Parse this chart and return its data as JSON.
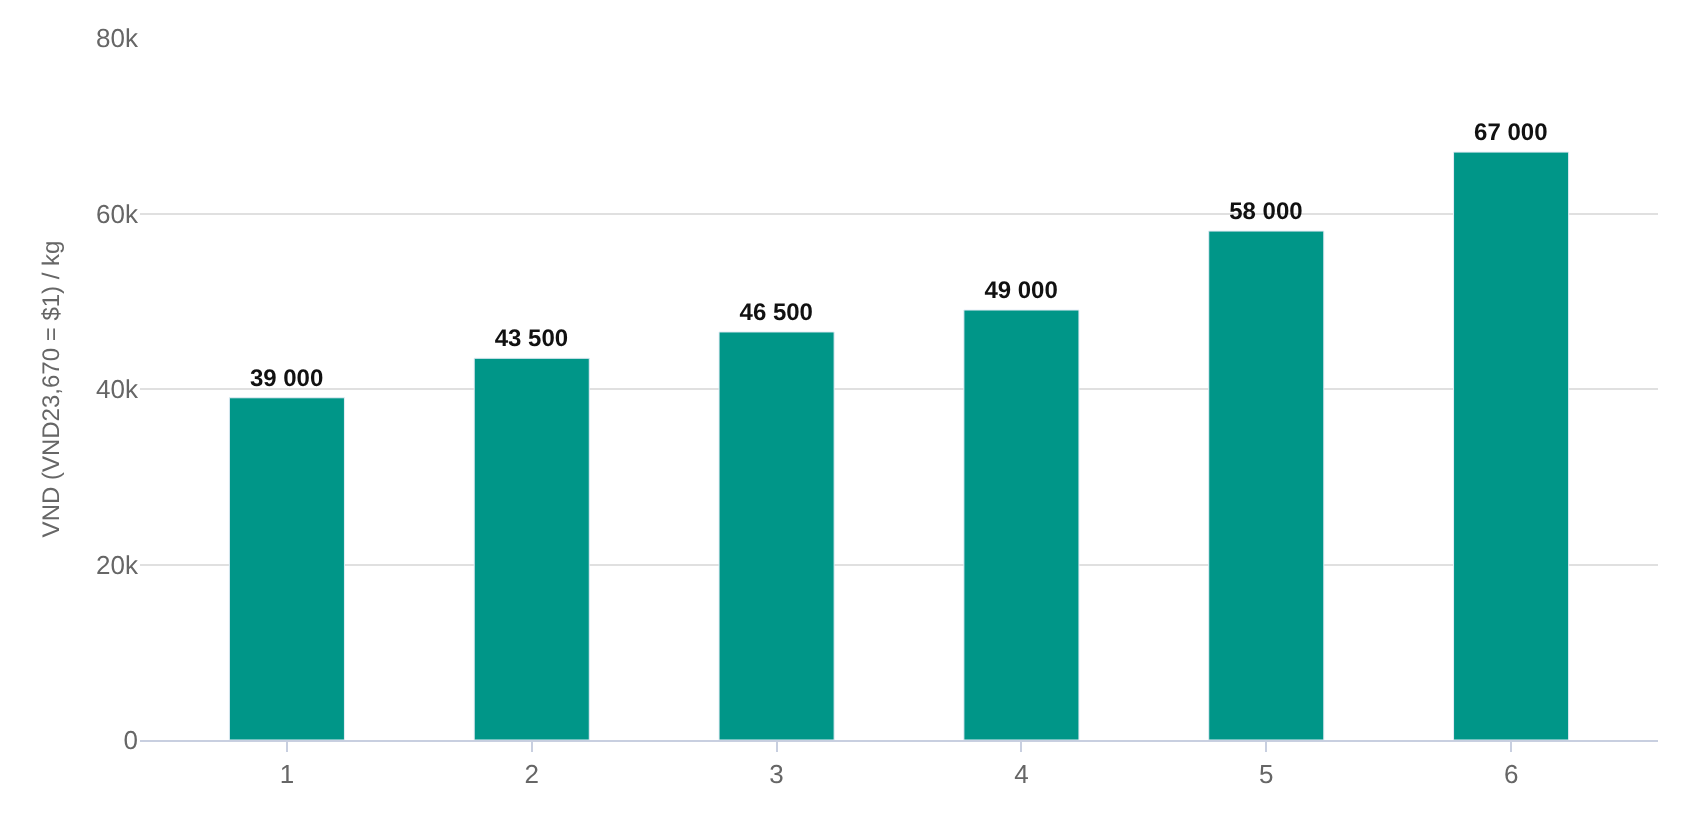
{
  "chart_data": {
    "type": "bar",
    "categories": [
      "1",
      "2",
      "3",
      "4",
      "5",
      "6"
    ],
    "values": [
      39000,
      43500,
      46500,
      49000,
      58000,
      67000
    ],
    "value_labels": [
      "39 000",
      "43 500",
      "46 500",
      "49 000",
      "58 000",
      "67 000"
    ],
    "color": "#009688",
    "ylabel": "VND (VND23,670 = $1) / kg",
    "ylim": [
      0,
      80000
    ],
    "yticks": [
      {
        "value": 0,
        "label": "0"
      },
      {
        "value": 20000,
        "label": "20k"
      },
      {
        "value": 40000,
        "label": "40k"
      },
      {
        "value": 60000,
        "label": "60k"
      },
      {
        "value": 80000,
        "label": "80k"
      }
    ],
    "grid": "y",
    "legend": false
  }
}
